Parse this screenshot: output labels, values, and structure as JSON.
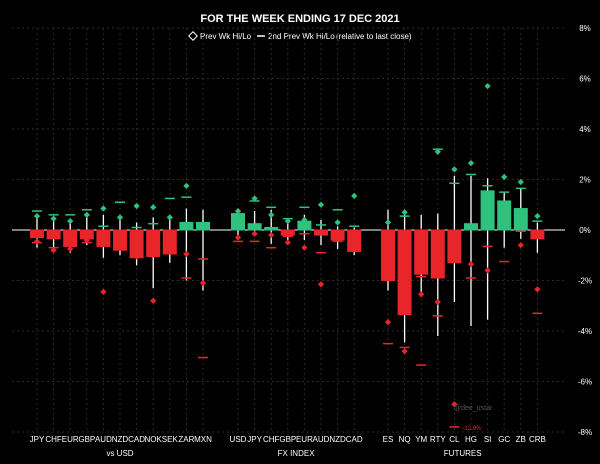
{
  "chart_data": {
    "type": "candlestick",
    "title": "FOR THE WEEK ENDING  17 DEC 2021",
    "legend": {
      "prev_wk": "Prev Wk Hi/Lo",
      "second_prev_wk": "2nd Prev Wk Hi/Lo",
      "note": "(relative to last close)"
    },
    "y_unit": "%",
    "ylim": [
      -8,
      8
    ],
    "y_ticks": [
      "8%",
      "6%",
      "4%",
      "2%",
      "0%",
      "-2%",
      "-4%",
      "-6%",
      "-8%"
    ],
    "grid": true,
    "watermark": "@dee_ustar",
    "groups": [
      {
        "label": "vs USD",
        "items": [
          {
            "label": "JPY",
            "open": 0,
            "close": -0.3,
            "high": 0.6,
            "low": -0.7,
            "prev_hi": 0.55,
            "prev_lo": -0.45,
            "prev2_hi": 0.75,
            "prev2_lo": -0.5
          },
          {
            "label": "CHF",
            "open": 0,
            "close": -0.35,
            "high": 0.5,
            "low": -0.8,
            "prev_hi": 0.45,
            "prev_lo": -0.8,
            "prev2_hi": 0.6,
            "prev2_lo": -0.7
          },
          {
            "label": "EUR",
            "open": 0,
            "close": -0.65,
            "high": 0.3,
            "low": -0.9,
            "prev_hi": 0.35,
            "prev_lo": -0.75,
            "prev2_hi": 0.6,
            "prev2_lo": -0.65
          },
          {
            "label": "GBP",
            "open": 0,
            "close": -0.35,
            "high": 0.5,
            "low": -0.6,
            "prev_hi": 0.6,
            "prev_lo": -0.4,
            "prev2_hi": 0.8,
            "prev2_lo": -0.5
          },
          {
            "label": "AUD",
            "open": 0,
            "close": -0.65,
            "high": 0.6,
            "low": -1.1,
            "prev_hi": 0.85,
            "prev_lo": -2.45,
            "prev2_hi": 0.15,
            "prev2_lo": -0.6
          },
          {
            "label": "NZD",
            "open": 0,
            "close": -0.8,
            "high": 0.55,
            "low": -1.0,
            "prev_hi": 0.5,
            "prev_lo": -0.65,
            "prev2_hi": 1.1,
            "prev2_lo": -0.7
          },
          {
            "label": "CAD",
            "open": 0,
            "close": -1.1,
            "high": 0.3,
            "low": -1.4,
            "prev_hi": 0.95,
            "prev_lo": -1.05,
            "prev2_hi": 0.1,
            "prev2_lo": -1.05
          },
          {
            "label": "NOK",
            "open": 0,
            "close": -1.05,
            "high": 0.5,
            "low": -2.3,
            "prev_hi": 0.9,
            "prev_lo": -2.8,
            "prev2_hi": 0.25,
            "prev2_lo": -0.65
          },
          {
            "label": "SEK",
            "open": 0,
            "close": -0.95,
            "high": 0.45,
            "low": -1.3,
            "prev_hi": 0.5,
            "prev_lo": -0.6,
            "prev2_hi": 1.25,
            "prev2_lo": -0.8
          },
          {
            "label": "ZAR",
            "open": 0,
            "close": 0.3,
            "high": 0.85,
            "low": -2.0,
            "prev_hi": 1.75,
            "prev_lo": -0.95,
            "prev2_hi": 1.3,
            "prev2_lo": -1.9
          },
          {
            "label": "MXN",
            "open": 0,
            "close": 0.3,
            "high": 0.8,
            "low": -2.4,
            "prev_hi": 0.1,
            "prev_lo": -2.1,
            "prev2_hi": -1.15,
            "prev2_lo": -5.05
          }
        ]
      },
      {
        "label": "FX INDEX",
        "items": [
          {
            "label": "USD",
            "open": 0,
            "close": 0.65,
            "high": 0.85,
            "low": -0.2,
            "prev_hi": 0.75,
            "prev_lo": -0.3,
            "prev2_hi": 0.6,
            "prev2_lo": -0.45
          },
          {
            "label": "JPY",
            "open": 0,
            "close": 0.25,
            "high": 0.75,
            "low": -0.2,
            "prev_hi": 1.25,
            "prev_lo": -0.15,
            "prev2_hi": 1.15,
            "prev2_lo": -0.45
          },
          {
            "label": "CHF",
            "open": 0,
            "close": 0.1,
            "high": 0.8,
            "low": -0.55,
            "prev_hi": 0.6,
            "prev_lo": -0.2,
            "prev2_hi": 0.9,
            "prev2_lo": -0.7
          },
          {
            "label": "GBP",
            "open": 0,
            "close": -0.2,
            "high": 0.3,
            "low": -0.5,
            "prev_hi": 0.35,
            "prev_lo": -0.5,
            "prev2_hi": 0.45,
            "prev2_lo": -0.25
          },
          {
            "label": "EUR",
            "open": 0,
            "close": 0.35,
            "high": 0.6,
            "low": -0.4,
            "prev_hi": 0.4,
            "prev_lo": -0.7,
            "prev2_hi": 0.9,
            "prev2_lo": -0.15
          },
          {
            "label": "AUD",
            "open": 0,
            "close": -0.2,
            "high": 0.4,
            "low": -0.6,
            "prev_hi": 1.0,
            "prev_lo": -2.15,
            "prev2_hi": 0.2,
            "prev2_lo": -0.9
          },
          {
            "label": "NZD",
            "open": 0,
            "close": -0.4,
            "high": 0.15,
            "low": -0.75,
            "prev_hi": 0.3,
            "prev_lo": -0.3,
            "prev2_hi": 0.8,
            "prev2_lo": -0.45
          },
          {
            "label": "CAD",
            "open": 0,
            "close": -0.85,
            "high": 0.1,
            "low": -1.0,
            "prev_hi": 1.35,
            "prev_lo": -0.5,
            "prev2_hi": 0.15,
            "prev2_lo": -0.3
          }
        ]
      },
      {
        "label": "FUTURES",
        "items": [
          {
            "label": "ES",
            "open": 0,
            "close": -2.0,
            "high": 0.8,
            "low": -2.4,
            "prev_hi": 0.3,
            "prev_lo": -3.65,
            "prev2_hi": -0.7,
            "prev2_lo": -4.5
          },
          {
            "label": "NQ",
            "open": 0,
            "close": -3.35,
            "high": 0.8,
            "low": -4.45,
            "prev_hi": 0.7,
            "prev_lo": -4.8,
            "prev2_hi": 0.55,
            "prev2_lo": -4.65
          },
          {
            "label": "YM",
            "open": 0,
            "close": -1.75,
            "high": 0.6,
            "low": -2.5,
            "prev_hi": -0.05,
            "prev_lo": -2.55,
            "prev2_hi": -1.85,
            "prev2_lo": -5.35
          },
          {
            "label": "RTY",
            "open": 0,
            "close": -1.9,
            "high": 0.65,
            "low": -4.2,
            "prev_hi": 3.1,
            "prev_lo": -2.85,
            "prev2_hi": 3.2,
            "prev2_lo": -3.4
          },
          {
            "label": "CL",
            "open": 0,
            "close": -1.3,
            "high": 2.15,
            "low": -2.85,
            "prev_hi": 2.4,
            "prev_lo": -6.9,
            "prev2_hi": 1.85,
            "prev2_lo": -7.8
          },
          {
            "label": "HG",
            "open": 0,
            "close": 0.25,
            "high": 2.15,
            "low": -3.8,
            "prev_hi": 2.65,
            "prev_lo": -1.35,
            "prev2_hi": 2.2,
            "prev2_lo": -1.9
          },
          {
            "label": "SI",
            "open": 0,
            "close": 1.55,
            "high": 2.05,
            "low": -3.55,
            "prev_hi": 5.7,
            "prev_lo": -1.6,
            "prev2_hi": 1.75,
            "prev2_lo": -0.65
          },
          {
            "label": "GC",
            "open": 0,
            "close": 1.15,
            "high": 1.5,
            "low": -0.7,
            "prev_hi": 2.1,
            "prev_lo": 0.55,
            "prev2_hi": 1.5,
            "prev2_lo": -1.25
          },
          {
            "label": "ZB",
            "open": 0,
            "close": 0.85,
            "high": 1.65,
            "low": -0.35,
            "prev_hi": 1.9,
            "prev_lo": -0.6,
            "prev2_hi": 1.65,
            "prev2_lo": -0.05
          },
          {
            "label": "CRB",
            "open": 0,
            "close": -0.35,
            "high": 0.3,
            "low": -0.9,
            "prev_hi": 0.55,
            "prev_lo": -2.35,
            "prev2_hi": 0.35,
            "prev2_lo": -3.3
          }
        ]
      }
    ],
    "annotations": [
      {
        "text": "-12.9%",
        "x_item": "CL",
        "y": -7.8
      }
    ],
    "colors": {
      "up": "#2ec27e",
      "down": "#e8262a",
      "prev_up": "#2ec27e",
      "prev_down": "#e8262a",
      "wick": "#ffffff",
      "zero_line": "#ffffff",
      "grid": "#2b2b2b"
    }
  }
}
